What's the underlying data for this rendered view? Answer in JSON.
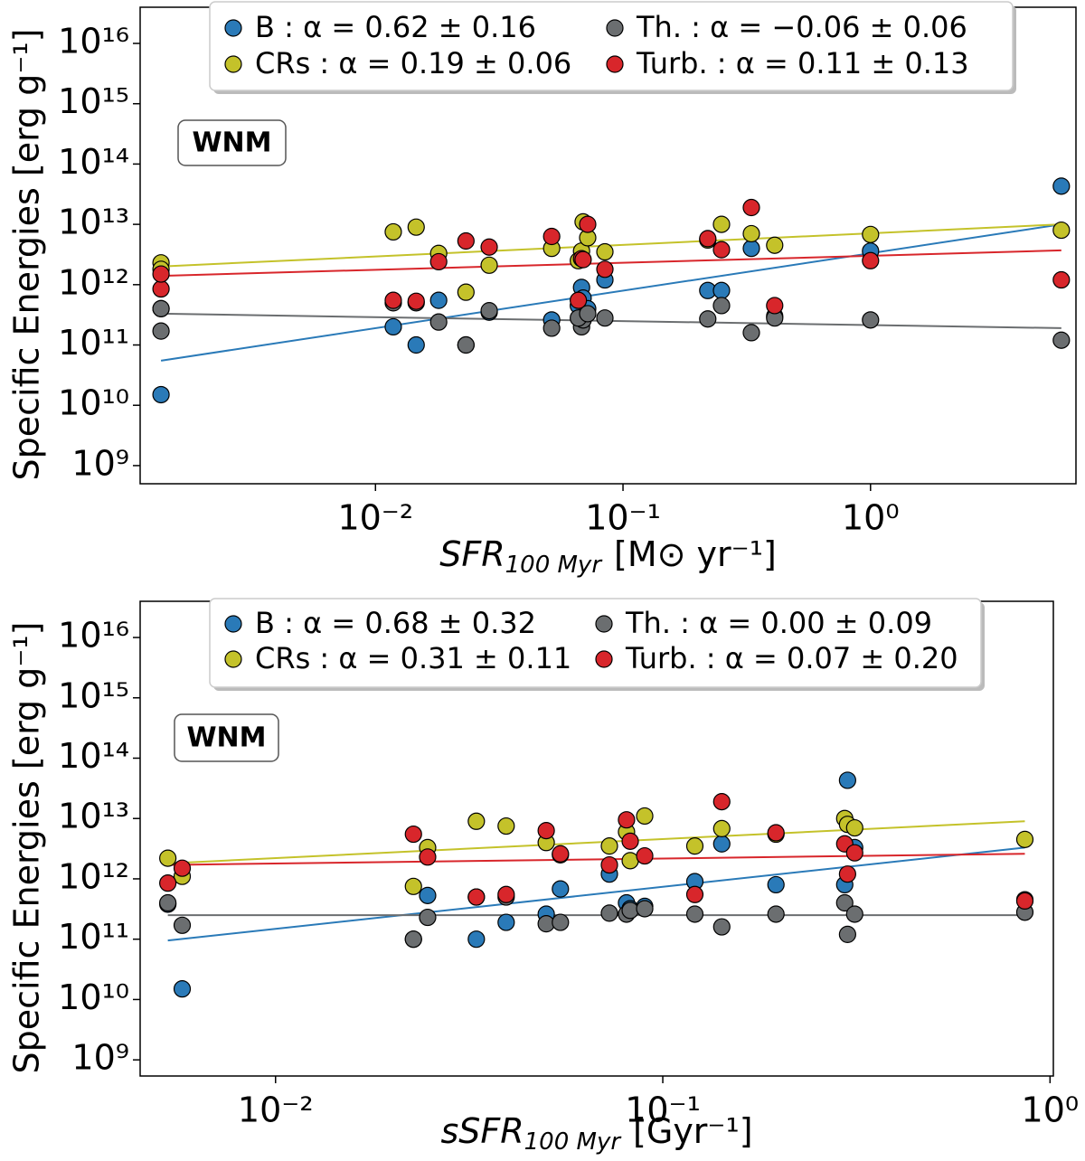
{
  "chart_data": [
    {
      "type": "scatter",
      "annotation": "WNM",
      "xlabel": {
        "text": "SFR",
        "sub": "100 Myr",
        "unit": "[M⊙ yr⁻¹]"
      },
      "ylabel": "Specific Energies [erg g⁻¹]",
      "xscale": "log",
      "yscale": "log",
      "xlim": [
        0.00112,
        6.76
      ],
      "ylim": [
        500000000.0,
        3.98e+16
      ],
      "xticks": [
        {
          "value": 0.01,
          "label": "10⁻²"
        },
        {
          "value": 0.1,
          "label": "10⁻¹"
        },
        {
          "value": 1,
          "label": "10⁰"
        }
      ],
      "yticks": [
        {
          "value": 1000000000.0,
          "label": "10⁹"
        },
        {
          "value": 10000000000.0,
          "label": "10¹⁰"
        },
        {
          "value": 100000000000.0,
          "label": "10¹¹"
        },
        {
          "value": 1000000000000.0,
          "label": "10¹²"
        },
        {
          "value": 10000000000000.0,
          "label": "10¹³"
        },
        {
          "value": 100000000000000.0,
          "label": "10¹⁴"
        },
        {
          "value": 1000000000000000.0,
          "label": "10¹⁵"
        },
        {
          "value": 1e+16,
          "label": "10¹⁶"
        }
      ],
      "x": [
        0.00136,
        0.00136,
        0.0118,
        0.0146,
        0.018,
        0.0232,
        0.0288,
        0.0515,
        0.068,
        0.069,
        0.066,
        0.072,
        0.0845,
        0.22,
        0.25,
        0.33,
        0.41,
        1.0,
        5.9
      ],
      "fit_x": [
        0.00136,
        5.9
      ],
      "series": [
        {
          "name": "B : α = 0.62 ± 0.16",
          "color": "#2a7ab8",
          "values": [
            15000000000.0,
            400000000000.0,
            200000000000.0,
            100000000000.0,
            550000000000.0,
            100000000000.0,
            350000000000.0,
            260000000000.0,
            900000000000.0,
            600000000000.0,
            450000000000.0,
            400000000000.0,
            1200000000000.0,
            800000000000.0,
            800000000000.0,
            4000000000000.0,
            300000000000.0,
            3600000000000.0,
            43000000000000.0
          ],
          "fit": [
            55000000000.0,
            10000000000000.0
          ]
        },
        {
          "name": "CRs : α = 0.19 ± 0.06",
          "color": "#c4c22a",
          "values": [
            2300000000000.0,
            1800000000000.0,
            7500000000000.0,
            9000000000000.0,
            3300000000000.0,
            750000000000.0,
            2100000000000.0,
            4000000000000.0,
            3600000000000.0,
            11000000000000.0,
            2500000000000.0,
            6000000000000.0,
            3500000000000.0,
            5500000000000.0,
            10000000000000.0,
            7000000000000.0,
            4500000000000.0,
            6800000000000.0,
            8000000000000.0
          ],
          "fit": [
            2000000000000.0,
            10000000000000.0
          ]
        },
        {
          "name": "Th. : α = −0.06 ± 0.06",
          "color": "#6b6e70",
          "values": [
            170000000000.0,
            400000000000.0,
            500000000000.0,
            500000000000.0,
            240000000000.0,
            100000000000.0,
            370000000000.0,
            190000000000.0,
            200000000000.0,
            260000000000.0,
            280000000000.0,
            330000000000.0,
            280000000000.0,
            270000000000.0,
            450000000000.0,
            160000000000.0,
            280000000000.0,
            260000000000.0,
            120000000000.0
          ],
          "fit": [
            330000000000.0,
            190000000000.0
          ]
        },
        {
          "name": "Turb. : α = 0.11 ± 0.13",
          "color": "#d8262b",
          "values": [
            850000000000.0,
            1500000000000.0,
            550000000000.0,
            530000000000.0,
            2400000000000.0,
            5300000000000.0,
            4200000000000.0,
            6300000000000.0,
            2700000000000.0,
            2600000000000.0,
            550000000000.0,
            10000000000000.0,
            1800000000000.0,
            5800000000000.0,
            3800000000000.0,
            19000000000000.0,
            450000000000.0,
            2500000000000.0,
            1200000000000.0
          ],
          "fit": [
            1400000000000.0,
            3700000000000.0
          ]
        }
      ]
    },
    {
      "type": "scatter",
      "annotation": "WNM",
      "xlabel": {
        "text": "sSFR",
        "sub": "100 Myr",
        "unit": "[Gyr⁻¹]"
      },
      "ylabel": "Specific Energies [erg g⁻¹]",
      "xscale": "log",
      "yscale": "log",
      "xlim": [
        0.00447,
        1.02
      ],
      "ylim": [
        540000000.0,
        3.98e+16
      ],
      "xticks": [
        {
          "value": 0.01,
          "label": "10⁻²"
        },
        {
          "value": 0.1,
          "label": "10⁻¹"
        },
        {
          "value": 1,
          "label": "10⁰"
        }
      ],
      "yticks": [
        {
          "value": 1000000000.0,
          "label": "10⁹"
        },
        {
          "value": 10000000000.0,
          "label": "10¹⁰"
        },
        {
          "value": 100000000000.0,
          "label": "10¹¹"
        },
        {
          "value": 1000000000000.0,
          "label": "10¹²"
        },
        {
          "value": 10000000000000.0,
          "label": "10¹³"
        },
        {
          "value": 100000000000000.0,
          "label": "10¹⁴"
        },
        {
          "value": 1000000000000000.0,
          "label": "10¹⁵"
        },
        {
          "value": 1e+16,
          "label": "10¹⁶"
        }
      ],
      "x": [
        0.00527,
        0.00574,
        0.0227,
        0.0247,
        0.033,
        0.0394,
        0.05,
        0.0544,
        0.0728,
        0.0806,
        0.0824,
        0.0898,
        0.121,
        0.142,
        0.196,
        0.295,
        0.3,
        0.313,
        0.861
      ],
      "fit_x": [
        0.00527,
        0.861
      ],
      "series": [
        {
          "name": "B : α = 0.68 ± 0.32",
          "color": "#2a7ab8",
          "values": [
            380000000000.0,
            15000000000.0,
            100000000000.0,
            530000000000.0,
            100000000000.0,
            190000000000.0,
            260000000000.0,
            680000000000.0,
            1200000000000.0,
            400000000000.0,
            320000000000.0,
            350000000000.0,
            900000000000.0,
            3800000000000.0,
            800000000000.0,
            800000000000.0,
            43000000000000.0,
            3300000000000.0,
            450000000000.0
          ],
          "fit": [
            95000000000.0,
            3300000000000.0
          ]
        },
        {
          "name": "CRs : α = 0.31 ± 0.11",
          "color": "#c4c22a",
          "values": [
            2200000000000.0,
            1100000000000.0,
            750000000000.0,
            3300000000000.0,
            9000000000000.0,
            7500000000000.0,
            4000000000000.0,
            2500000000000.0,
            3500000000000.0,
            6000000000000.0,
            2000000000000.0,
            11000000000000.0,
            3500000000000.0,
            6800000000000.0,
            5500000000000.0,
            10000000000000.0,
            8000000000000.0,
            7000000000000.0,
            4500000000000.0
          ],
          "fit": [
            1800000000000.0,
            9000000000000.0
          ]
        },
        {
          "name": "Th. : α = 0.00 ± 0.09",
          "color": "#6b6e70",
          "values": [
            400000000000.0,
            170000000000.0,
            100000000000.0,
            230000000000.0,
            500000000000.0,
            500000000000.0,
            180000000000.0,
            190000000000.0,
            270000000000.0,
            260000000000.0,
            300000000000.0,
            320000000000.0,
            260000000000.0,
            160000000000.0,
            260000000000.0,
            400000000000.0,
            120000000000.0,
            260000000000.0,
            280000000000.0
          ],
          "fit": [
            250000000000.0,
            250000000000.0
          ]
        },
        {
          "name": "Turb. : α = 0.07 ± 0.20",
          "color": "#d8262b",
          "values": [
            850000000000.0,
            1500000000000.0,
            5500000000000.0,
            2300000000000.0,
            500000000000.0,
            550000000000.0,
            6300000000000.0,
            2600000000000.0,
            1700000000000.0,
            9500000000000.0,
            4200000000000.0,
            2400000000000.0,
            550000000000.0,
            19000000000000.0,
            5800000000000.0,
            3800000000000.0,
            1200000000000.0,
            2700000000000.0,
            430000000000.0
          ],
          "fit": [
            1700000000000.0,
            2600000000000.0
          ]
        }
      ]
    }
  ]
}
